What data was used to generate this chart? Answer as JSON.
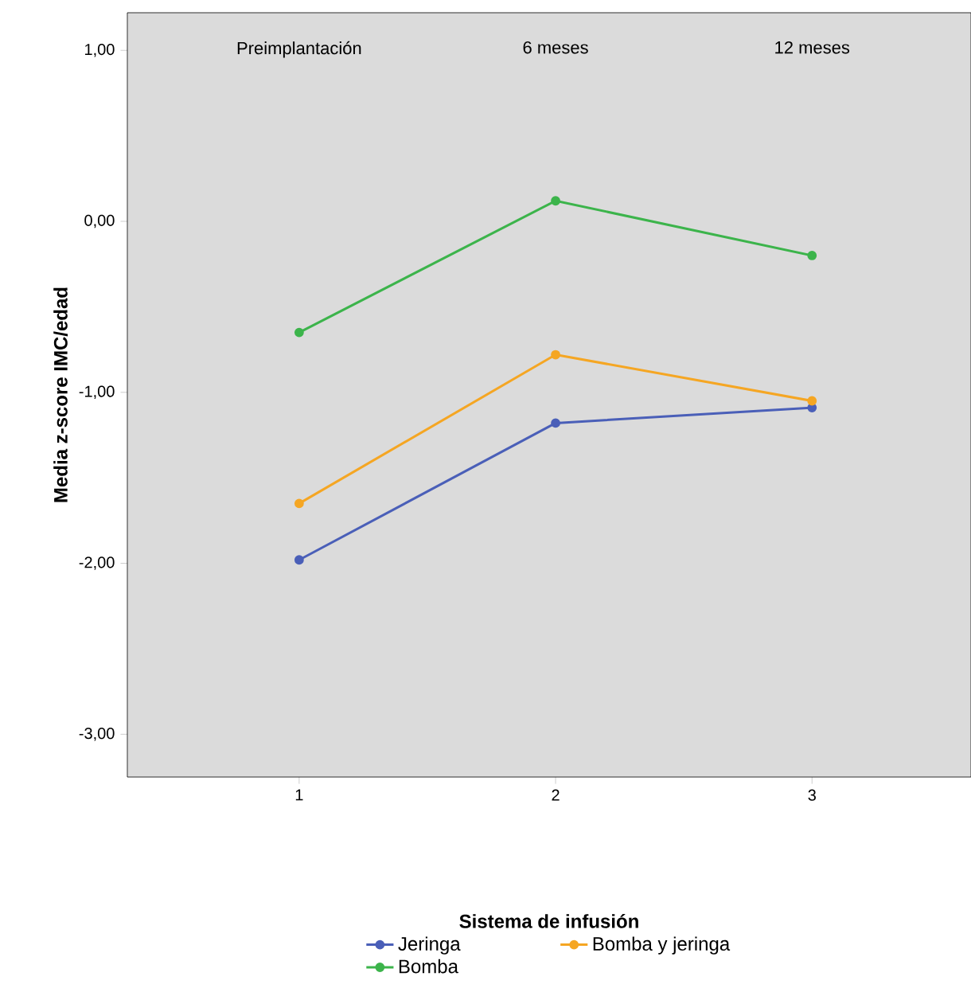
{
  "chart_data": {
    "type": "line",
    "ylabel": "Media z-score IMC/edad",
    "legend_title": "Sistema de infusión",
    "x": [
      1,
      2,
      3
    ],
    "xlim": [
      0.33,
      3.62
    ],
    "xticks": [
      1,
      2,
      3
    ],
    "ylim": [
      -3.25,
      1.22
    ],
    "yticks": [
      {
        "value": -3,
        "label": "-3,00"
      },
      {
        "value": -2,
        "label": "-2,00"
      },
      {
        "value": -1,
        "label": "-1,00"
      },
      {
        "value": 0,
        "label": "0,00"
      },
      {
        "value": 1,
        "label": "1,00"
      }
    ],
    "series": [
      {
        "name": "Jeringa",
        "color": "#4a5fb8",
        "values": [
          -1.98,
          -1.18,
          -1.09
        ]
      },
      {
        "name": "Bomba y jeringa",
        "color": "#f5a623",
        "values": [
          -1.65,
          -0.78,
          -1.05
        ]
      },
      {
        "name": "Bomba",
        "color": "#3cb44b",
        "values": [
          -0.65,
          0.12,
          -0.2
        ]
      }
    ],
    "annotations": [
      "Preimplantación",
      "6 meses",
      "12 meses"
    ],
    "grid": false,
    "legend": "bottom",
    "marker": "circle",
    "line_style": "solid"
  }
}
